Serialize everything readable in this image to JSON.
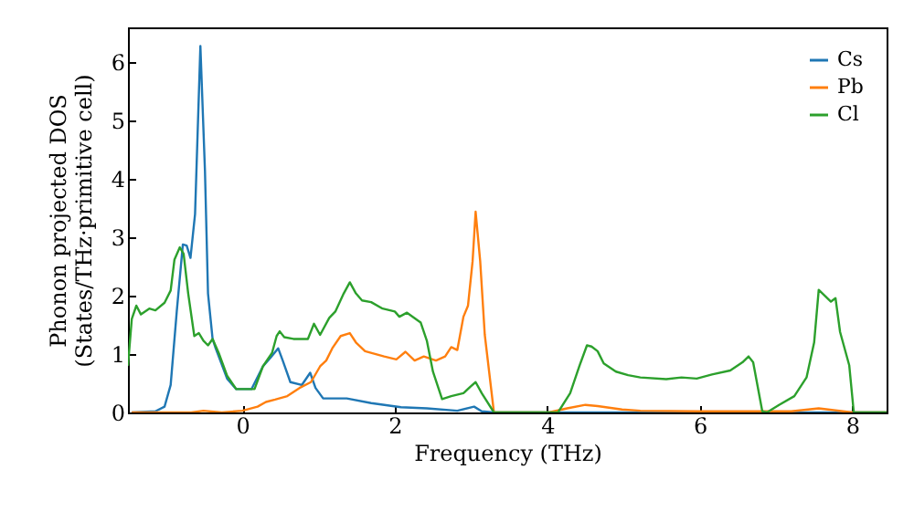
{
  "chart_data": {
    "type": "line",
    "xlabel": "Frequency (THz)",
    "ylabel": "Phonon projected DOS\n(States/THz·primitive cell)",
    "xlim": [
      -1.5,
      8.45
    ],
    "ylim": [
      0,
      6.6
    ],
    "xticks": [
      0,
      2,
      4,
      6,
      8
    ],
    "yticks": [
      0,
      1,
      2,
      3,
      4,
      5,
      6
    ],
    "grid": false,
    "legend": "top right",
    "series": [
      {
        "name": "Cs",
        "color": "#1f77b4",
        "x": [
          -1.45,
          -1.14,
          -1.02,
          -0.94,
          -0.86,
          -0.78,
          -0.73,
          -0.68,
          -0.62,
          -0.55,
          -0.49,
          -0.45,
          -0.39,
          -0.35,
          -0.2,
          -0.08,
          0.12,
          0.27,
          0.37,
          0.47,
          0.53,
          0.63,
          0.78,
          0.89,
          0.96,
          1.06,
          1.37,
          1.69,
          2.08,
          2.42,
          2.82,
          3.04,
          3.14,
          3.3,
          4.0,
          6.0,
          8.0,
          8.45
        ],
        "values": [
          0,
          0.02,
          0.1,
          0.47,
          1.73,
          2.88,
          2.86,
          2.65,
          3.4,
          6.28,
          4.14,
          2.04,
          1.26,
          1.1,
          0.58,
          0.4,
          0.4,
          0.79,
          0.94,
          1.1,
          0.89,
          0.52,
          0.47,
          0.68,
          0.42,
          0.24,
          0.24,
          0.16,
          0.09,
          0.07,
          0.03,
          0.1,
          0.02,
          0,
          0,
          0,
          0,
          0
        ]
      },
      {
        "name": "Pb",
        "color": "#ff7f0e",
        "x": [
          -1.45,
          -0.67,
          -0.51,
          -0.27,
          0,
          0.2,
          0.31,
          0.43,
          0.59,
          0.75,
          0.9,
          1.02,
          1.1,
          1.18,
          1.29,
          1.41,
          1.49,
          1.61,
          1.86,
          2.02,
          2.14,
          2.26,
          2.38,
          2.54,
          2.66,
          2.74,
          2.82,
          2.9,
          2.96,
          3.02,
          3.06,
          3.12,
          3.18,
          3.3,
          4.02,
          4.26,
          4.5,
          4.66,
          4.98,
          5.22,
          6.0,
          7.2,
          7.56,
          8.0,
          8.45
        ],
        "values": [
          0,
          0,
          0.03,
          0,
          0.03,
          0.1,
          0.18,
          0.22,
          0.28,
          0.42,
          0.52,
          0.79,
          0.89,
          1.1,
          1.31,
          1.36,
          1.2,
          1.05,
          0.96,
          0.91,
          1.04,
          0.89,
          0.96,
          0.89,
          0.96,
          1.12,
          1.07,
          1.64,
          1.83,
          2.59,
          3.44,
          2.59,
          1.33,
          0,
          0,
          0.07,
          0.13,
          0.11,
          0.05,
          0.03,
          0.02,
          0.02,
          0.07,
          0,
          0
        ]
      },
      {
        "name": "Cl",
        "color": "#2ca02c",
        "x": [
          -1.5,
          -1.45,
          -1.39,
          -1.33,
          -1.22,
          -1.14,
          -1.02,
          -0.94,
          -0.89,
          -0.82,
          -0.77,
          -0.71,
          -0.63,
          -0.57,
          -0.51,
          -0.45,
          -0.39,
          -0.31,
          -0.2,
          -0.08,
          0.16,
          0.27,
          0.39,
          0.45,
          0.49,
          0.55,
          0.67,
          0.86,
          0.94,
          1.02,
          1.14,
          1.22,
          1.33,
          1.41,
          1.49,
          1.57,
          1.69,
          1.84,
          2.0,
          2.06,
          2.16,
          2.34,
          2.42,
          2.5,
          2.62,
          2.74,
          2.9,
          2.99,
          3.06,
          3.14,
          3.3,
          4.14,
          4.3,
          4.42,
          4.52,
          4.58,
          4.66,
          4.74,
          4.9,
          5.06,
          5.22,
          5.56,
          5.76,
          5.96,
          6.16,
          6.4,
          6.56,
          6.64,
          6.7,
          6.82,
          6.88,
          7.04,
          7.24,
          7.4,
          7.5,
          7.56,
          7.64,
          7.72,
          7.78,
          7.84,
          7.96,
          8.02,
          8.45
        ],
        "values": [
          0.8,
          1.6,
          1.83,
          1.68,
          1.78,
          1.75,
          1.88,
          2.09,
          2.62,
          2.83,
          2.72,
          2.04,
          1.31,
          1.36,
          1.23,
          1.15,
          1.26,
          1.02,
          0.63,
          0.4,
          0.4,
          0.79,
          1.02,
          1.31,
          1.39,
          1.29,
          1.26,
          1.26,
          1.52,
          1.33,
          1.62,
          1.73,
          2.04,
          2.23,
          2.04,
          1.92,
          1.89,
          1.78,
          1.73,
          1.64,
          1.71,
          1.54,
          1.23,
          0.7,
          0.23,
          0.28,
          0.33,
          0.44,
          0.52,
          0.33,
          0,
          0,
          0.33,
          0.79,
          1.15,
          1.13,
          1.05,
          0.84,
          0.7,
          0.64,
          0.6,
          0.57,
          0.6,
          0.58,
          0.65,
          0.72,
          0.86,
          0.96,
          0.86,
          0.02,
          0,
          0.13,
          0.28,
          0.6,
          1.2,
          2.1,
          2.0,
          1.9,
          1.96,
          1.38,
          0.81,
          0,
          0
        ]
      }
    ]
  }
}
